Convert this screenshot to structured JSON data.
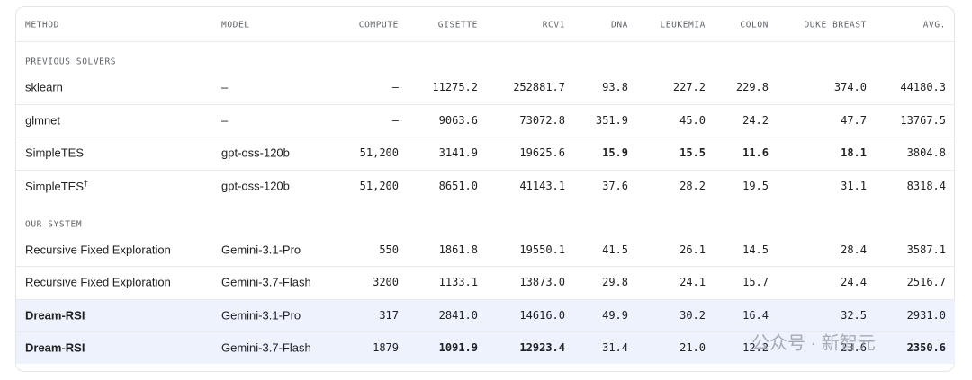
{
  "table": {
    "columns": [
      "METHOD",
      "MODEL",
      "COMPUTE",
      "GISETTE",
      "RCV1",
      "DNA",
      "LEUKEMIA",
      "COLON",
      "DUKE BREAST",
      "AVG."
    ],
    "sections": [
      {
        "label": "PREVIOUS SOLVERS",
        "rows": [
          {
            "cells": [
              "sklearn",
              "–",
              "–",
              "11275.2",
              "252881.7",
              "93.8",
              "227.2",
              "229.8",
              "374.0",
              "44180.3"
            ],
            "bold": []
          },
          {
            "cells": [
              "glmnet",
              "–",
              "–",
              "9063.6",
              "73072.8",
              "351.9",
              "45.0",
              "24.2",
              "47.7",
              "13767.5"
            ],
            "bold": []
          },
          {
            "cells": [
              "SimpleTES",
              "gpt-oss-120b",
              "51,200",
              "3141.9",
              "19625.6",
              "15.9",
              "15.5",
              "11.6",
              "18.1",
              "3804.8"
            ],
            "bold": [
              5,
              6,
              7,
              8
            ]
          },
          {
            "cells": [
              "SimpleTES",
              "gpt-oss-120b",
              "51,200",
              "8651.0",
              "41143.1",
              "37.6",
              "28.2",
              "19.5",
              "31.1",
              "8318.4"
            ],
            "bold": [],
            "sup": "†"
          }
        ]
      },
      {
        "label": "OUR SYSTEM",
        "rows": [
          {
            "cells": [
              "Recursive Fixed Exploration",
              "Gemini-3.1-Pro",
              "550",
              "1861.8",
              "19550.1",
              "41.5",
              "26.1",
              "14.5",
              "28.4",
              "3587.1"
            ],
            "bold": []
          },
          {
            "cells": [
              "Recursive Fixed Exploration",
              "Gemini-3.7-Flash",
              "3200",
              "1133.1",
              "13873.0",
              "29.8",
              "24.1",
              "15.7",
              "24.4",
              "2516.7"
            ],
            "bold": []
          },
          {
            "cells": [
              "Dream-RSI",
              "Gemini-3.1-Pro",
              "317",
              "2841.0",
              "14616.0",
              "49.9",
              "30.2",
              "16.4",
              "32.5",
              "2931.0"
            ],
            "bold": [
              0
            ],
            "highlight": true
          },
          {
            "cells": [
              "Dream-RSI",
              "Gemini-3.7-Flash",
              "1879",
              "1091.9",
              "12923.4",
              "31.4",
              "21.0",
              "12.2",
              "23.6",
              "2350.6"
            ],
            "bold": [
              0,
              3,
              4,
              9
            ],
            "highlight": true
          }
        ]
      }
    ]
  },
  "watermark": "公众号 · 新智元"
}
